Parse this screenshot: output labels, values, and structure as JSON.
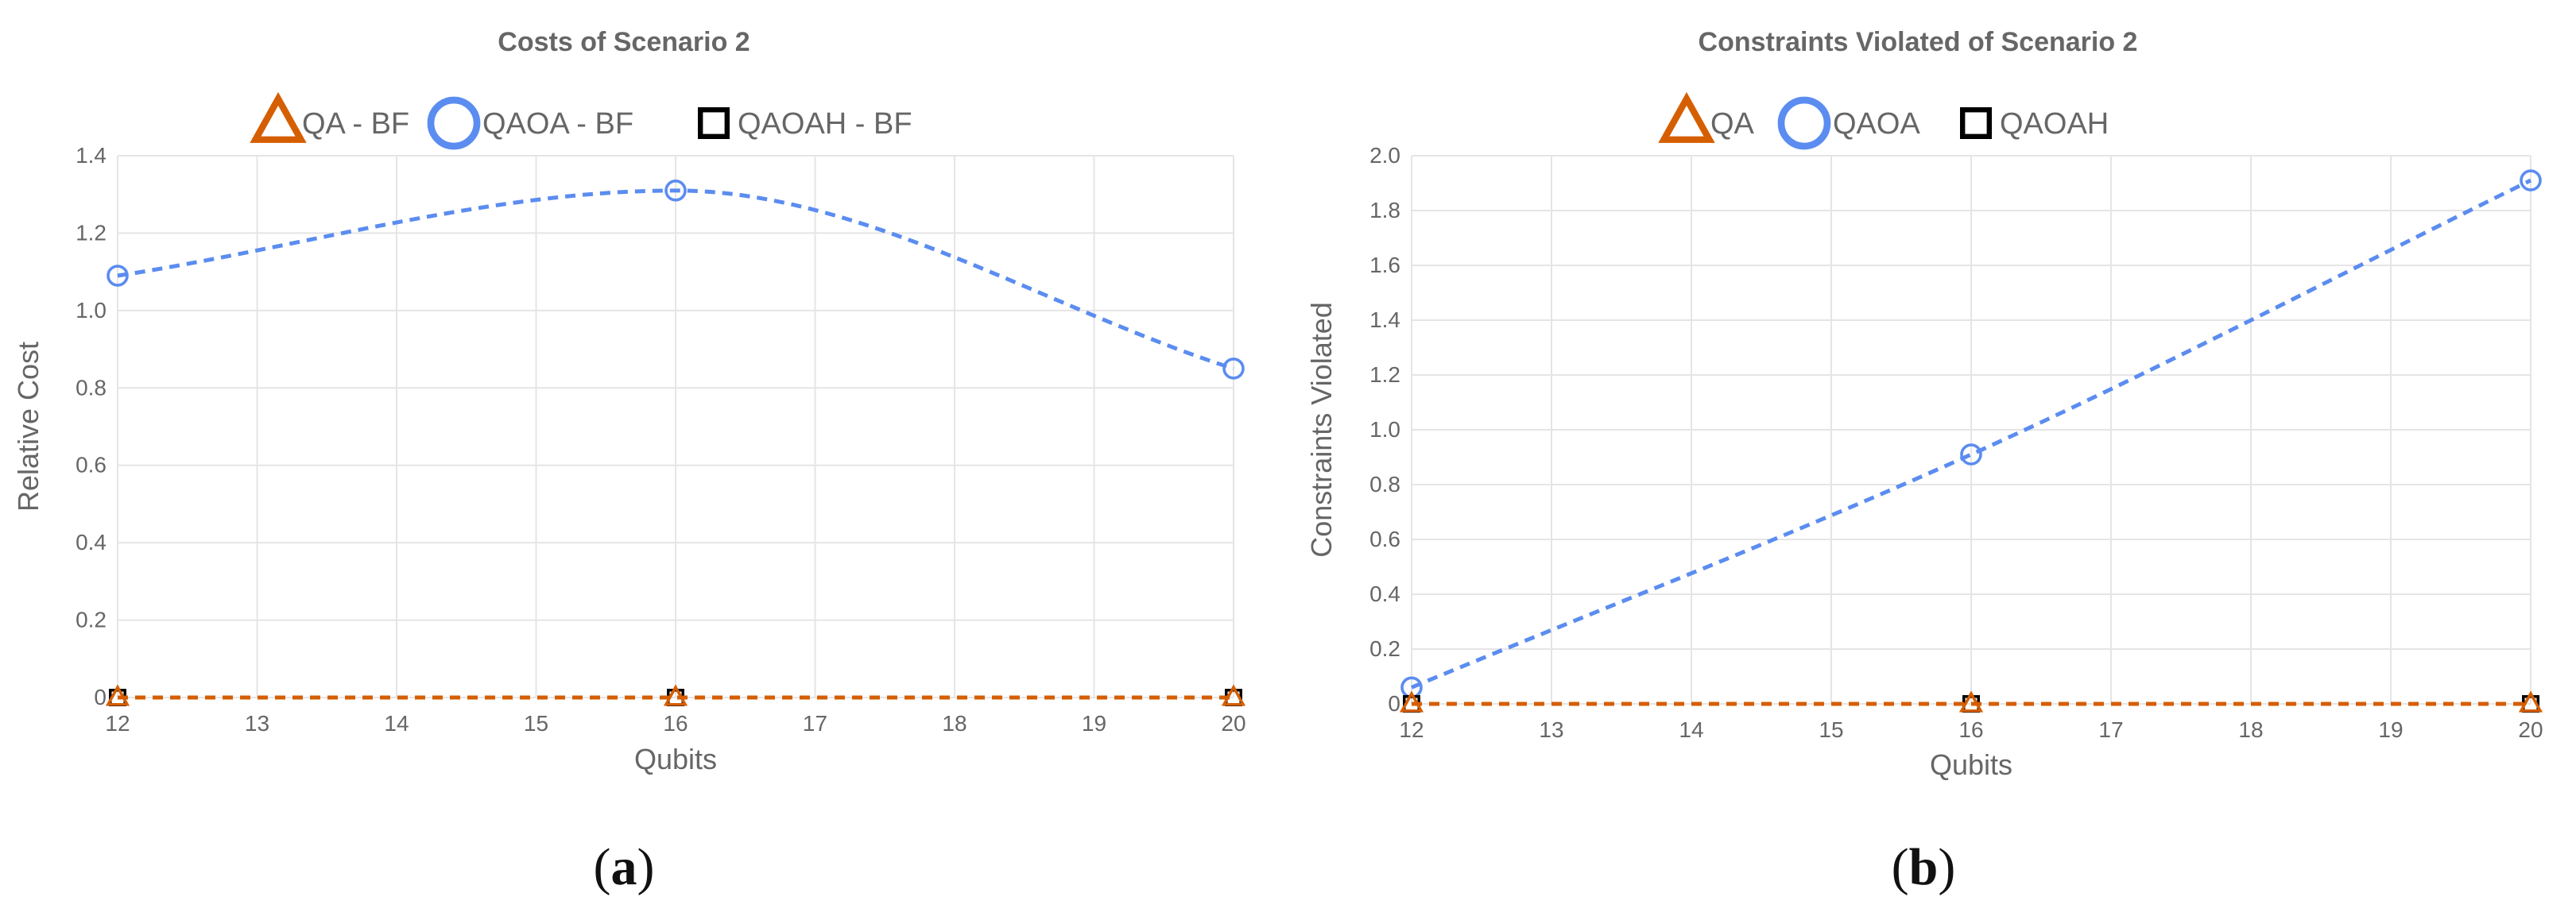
{
  "chart_data": [
    {
      "type": "line",
      "title": "Costs of Scenario 2",
      "xlabel": "Qubits",
      "ylabel": "Relative Cost",
      "caption_letter": "a",
      "x": [
        12,
        16,
        20
      ],
      "xlim": [
        12,
        20
      ],
      "xticks": [
        "12",
        "13",
        "14",
        "15",
        "16",
        "17",
        "18",
        "19",
        "20"
      ],
      "ylim": [
        0,
        1.4
      ],
      "yticks": [
        "0",
        "0.2",
        "0.4",
        "0.6",
        "0.8",
        "1.0",
        "1.2",
        "1.4"
      ],
      "grid": true,
      "legend_position": "top",
      "series": [
        {
          "name": "QA - BF",
          "values": [
            0,
            0,
            0
          ],
          "color": "#d55e00",
          "marker": "triangle-icon"
        },
        {
          "name": "QAOA - BF",
          "values": [
            1.09,
            1.31,
            0.85
          ],
          "color": "#5b8cf0",
          "marker": "circle-icon"
        },
        {
          "name": "QAOAH - BF",
          "values": [
            0,
            0,
            0
          ],
          "color": "#000000",
          "marker": "square-icon"
        }
      ]
    },
    {
      "type": "line",
      "title": "Constraints Violated of Scenario 2",
      "xlabel": "Qubits",
      "ylabel": "Constraints Violated",
      "caption_letter": "b",
      "x": [
        12,
        16,
        20
      ],
      "xlim": [
        12,
        20
      ],
      "xticks": [
        "12",
        "13",
        "14",
        "15",
        "16",
        "17",
        "18",
        "19",
        "20"
      ],
      "ylim": [
        0,
        2.0
      ],
      "yticks": [
        "0",
        "0.2",
        "0.4",
        "0.6",
        "0.8",
        "1.0",
        "1.2",
        "1.4",
        "1.6",
        "1.8",
        "2.0"
      ],
      "grid": true,
      "legend_position": "top",
      "series": [
        {
          "name": "QA",
          "values": [
            0,
            0,
            0
          ],
          "color": "#d55e00",
          "marker": "triangle-icon"
        },
        {
          "name": "QAOA",
          "values": [
            0.06,
            0.91,
            1.91
          ],
          "color": "#5b8cf0",
          "marker": "circle-icon"
        },
        {
          "name": "QAOAH",
          "values": [
            0,
            0,
            0
          ],
          "color": "#000000",
          "marker": "square-icon"
        }
      ]
    }
  ]
}
